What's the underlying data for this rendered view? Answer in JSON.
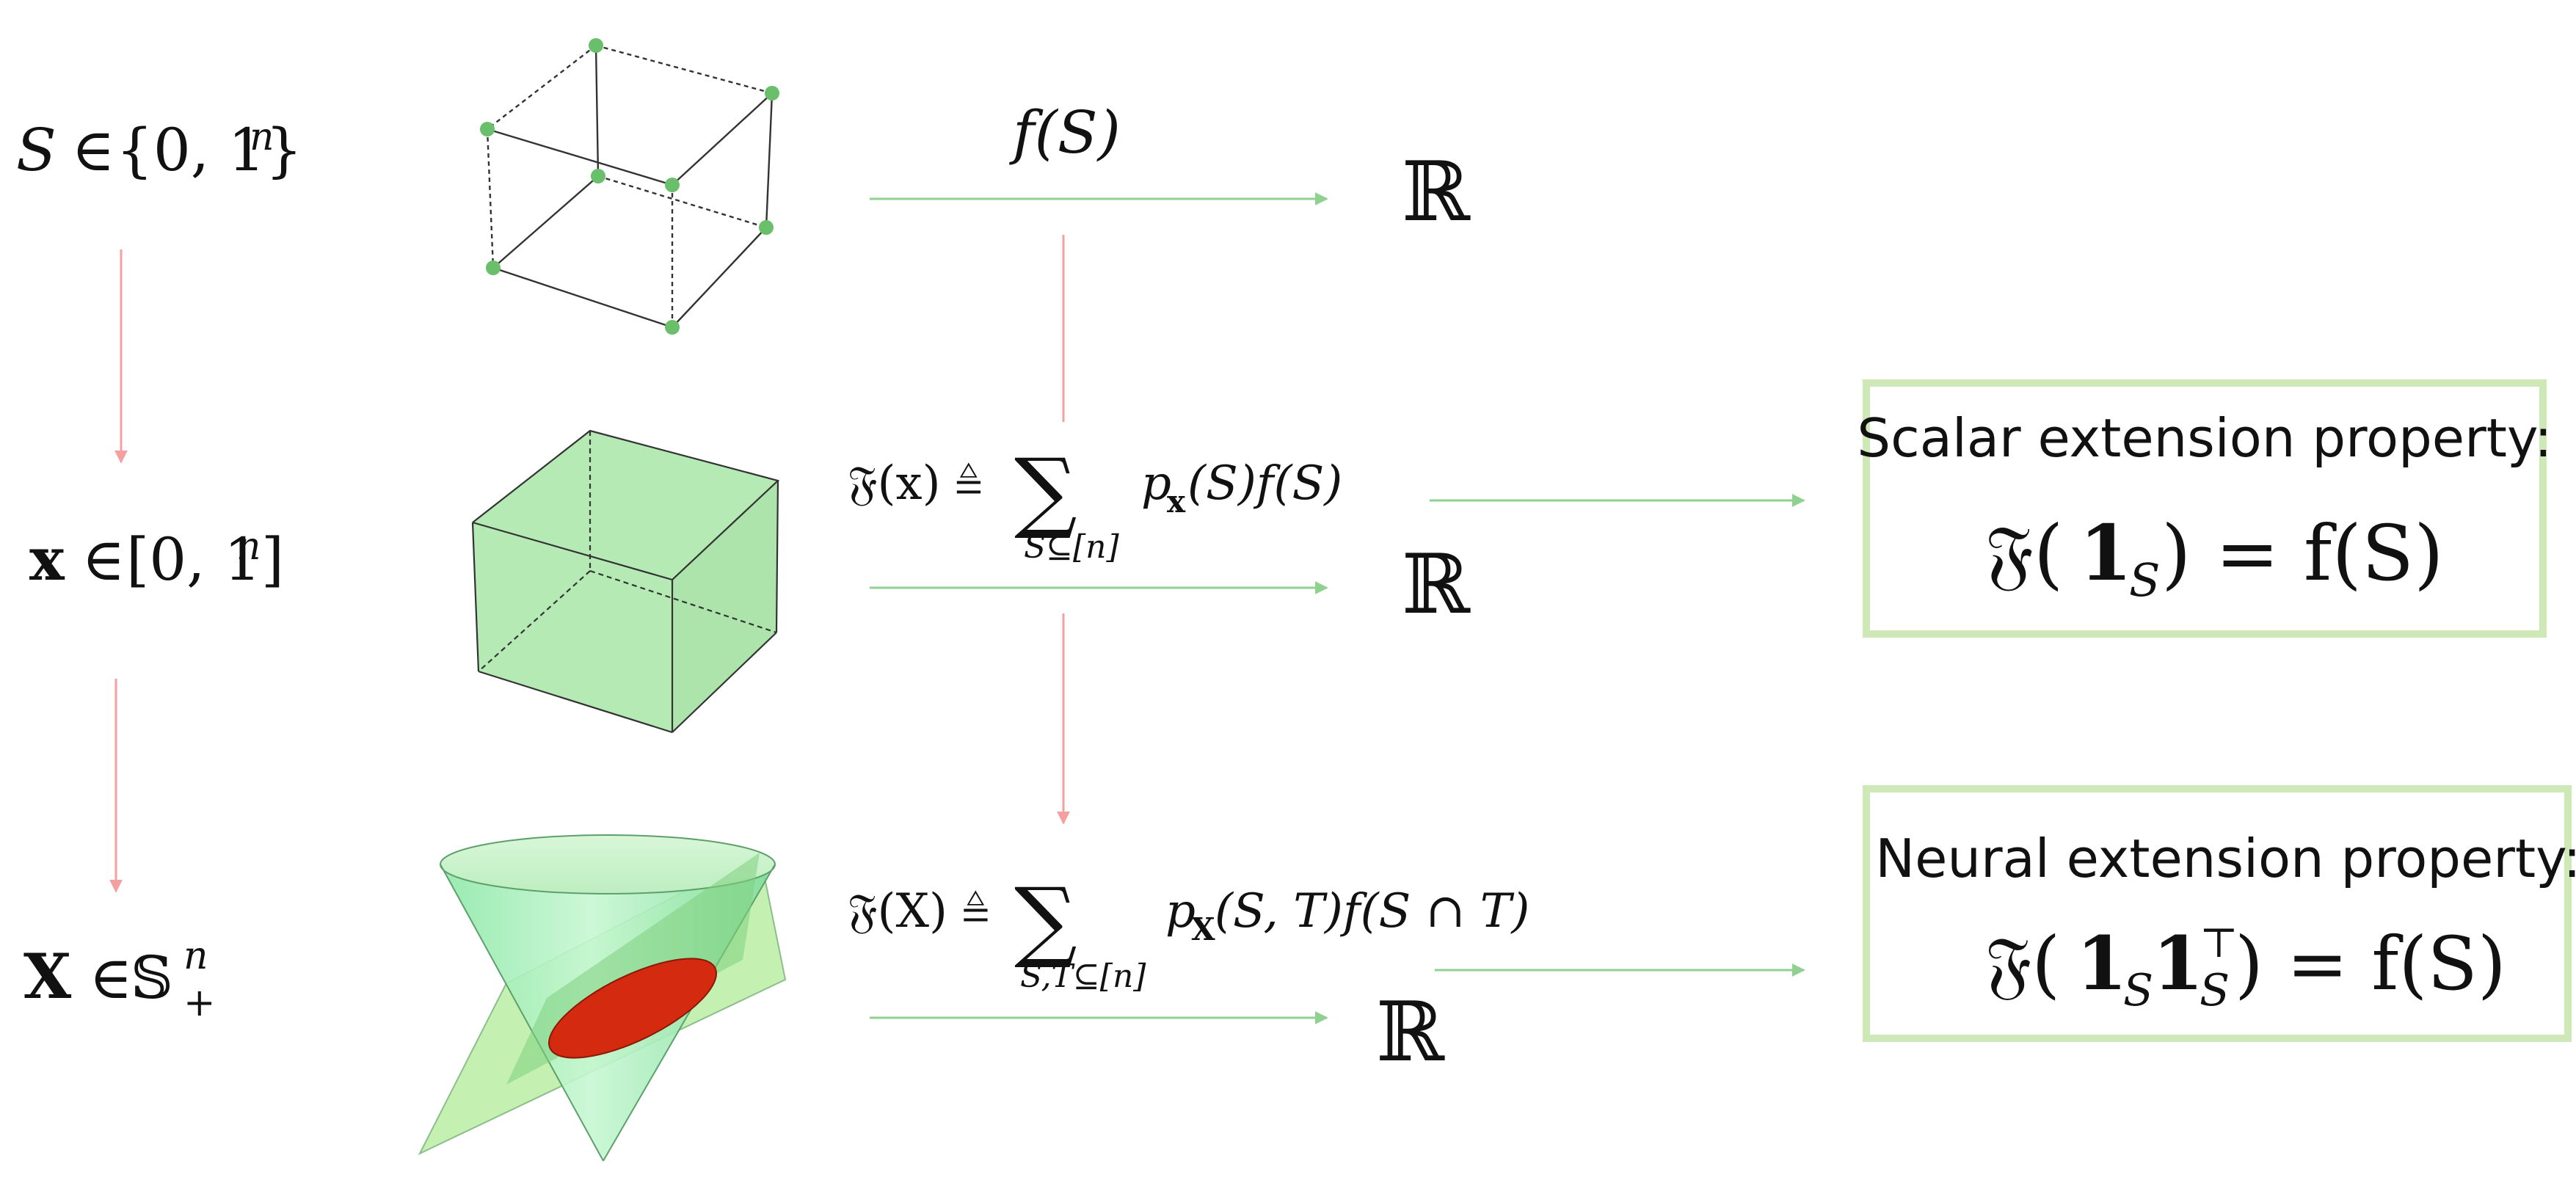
{
  "colors": {
    "green_arrow": "#8fd18f",
    "red_arrow": "#f4a0a0",
    "box_border": "#cfe8b8",
    "cube_fill": "#a8e6a8",
    "vertex": "#6abf6a",
    "cone_top": "#c9f2c9",
    "cone_side": "#9beab0",
    "plane": "#b6eea0",
    "ellipse": "#d42a10"
  },
  "rows": [
    {
      "domain": {
        "var": "S",
        "rel": " ∈ ",
        "set": "{0, 1}",
        "sup": "n"
      },
      "map": {
        "lhs": "f(S)"
      },
      "codomain": "ℝ",
      "shape": "wireframe-cube"
    },
    {
      "domain": {
        "var": "x",
        "rel": " ∈ ",
        "set": "[0, 1]",
        "sup": "n"
      },
      "map": {
        "lhs": "𝔉(x) ≜",
        "sum": "∑",
        "sub": "S⊆[n]",
        "term": "p",
        "term_sub": "x",
        "term_rest": "(S)f(S)"
      },
      "codomain": "ℝ",
      "shape": "filled-cube",
      "property": {
        "title": "Scalar extension property:",
        "eq_lhs": "𝔉(",
        "eq_one": "1",
        "eq_one_sub": "S",
        "eq_rhs": ") = f(S)"
      }
    },
    {
      "domain": {
        "var": "X",
        "rel": " ∈ ",
        "set": "𝕊",
        "sup": "n",
        "sub": "+"
      },
      "map": {
        "lhs": "𝔉(X) ≜",
        "sum": "∑",
        "sub": "S,T⊆[n]",
        "term": "p",
        "term_sub": "X",
        "term_rest": "(S, T)f(S ∩ T)"
      },
      "codomain": "ℝ",
      "shape": "psd-cone",
      "property": {
        "title": "Neural extension property:",
        "eq_lhs": "𝔉(",
        "eq_one": "1",
        "eq_one_sub": "S",
        "eq_one2": "1",
        "eq_one2_sub": "S",
        "eq_one2_sup": "⊤",
        "eq_rhs": ") = f(S)"
      }
    }
  ]
}
